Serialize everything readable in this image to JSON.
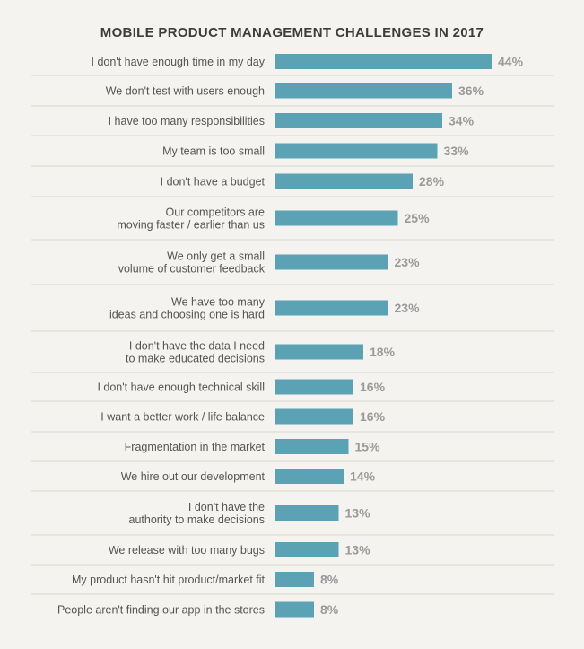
{
  "chart_data": {
    "type": "bar",
    "orientation": "horizontal",
    "title": "MOBILE PRODUCT MANAGEMENT CHALLENGES IN 2017",
    "bar_color": "#5ba3b4",
    "categories": [
      [
        "I don't have enough time in my day"
      ],
      [
        "We don't test with users enough"
      ],
      [
        "I have too many responsibilities"
      ],
      [
        "My team is too small"
      ],
      [
        "I don't have a budget"
      ],
      [
        "Our competitors are",
        "moving faster / earlier than us"
      ],
      [
        "We only get a small",
        "volume of customer feedback"
      ],
      [
        "We have too many",
        "ideas and choosing one is hard"
      ],
      [
        "I don't have the data I need",
        "to make educated decisions"
      ],
      [
        "I don't have enough technical skill"
      ],
      [
        "I want a better work / life balance"
      ],
      [
        "Fragmentation in the market"
      ],
      [
        "We hire out our development"
      ],
      [
        "I don't have the",
        "authority to make decisions"
      ],
      [
        "We release with too many bugs"
      ],
      [
        "My product hasn't hit product/market fit"
      ],
      [
        "People aren't finding our app in the stores"
      ]
    ],
    "values": [
      44,
      36,
      34,
      33,
      28,
      25,
      23,
      23,
      18,
      16,
      16,
      15,
      14,
      13,
      13,
      8,
      8
    ],
    "value_labels": [
      "44%",
      "36%",
      "34%",
      "33%",
      "28%",
      "25%",
      "23%",
      "23%",
      "18%",
      "16%",
      "16%",
      "15%",
      "14%",
      "13%",
      "13%",
      "8%",
      "8%"
    ],
    "xlabel": "",
    "ylabel": "",
    "xlim": [
      0,
      44
    ],
    "grid": false,
    "legend": "none"
  }
}
